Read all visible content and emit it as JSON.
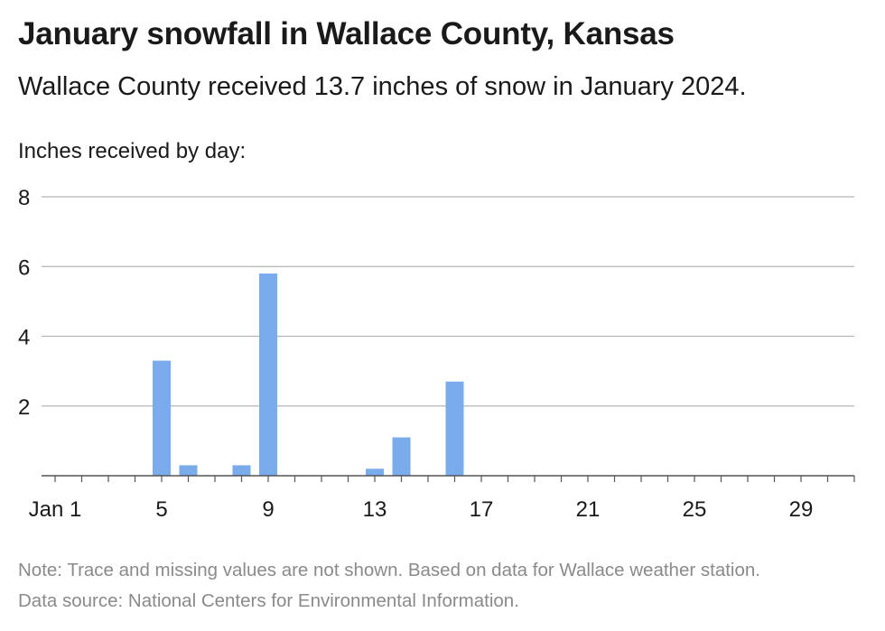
{
  "header": {
    "title": "January snowfall in Wallace County, Kansas",
    "subtitle": "Wallace County received 13.7 inches of snow in January 2024."
  },
  "footer": {
    "note": "Note: Trace and missing values are not shown. Based on data for Wallace weather station.",
    "source": "Data source: National Centers for Environmental Information."
  },
  "chart_data": {
    "type": "bar",
    "title": "January snowfall in Wallace County, Kansas",
    "subtitle": "Wallace County received 13.7 inches of snow in January 2024.",
    "ylabel": "Inches received by day:",
    "xlabel": "",
    "ylim": [
      0,
      8
    ],
    "yticks": [
      2,
      4,
      6,
      8
    ],
    "xlim": [
      1,
      31
    ],
    "xticks": [
      {
        "day": 1,
        "label": "Jan 1"
      },
      {
        "day": 5,
        "label": "5"
      },
      {
        "day": 9,
        "label": "9"
      },
      {
        "day": 13,
        "label": "13"
      },
      {
        "day": 17,
        "label": "17"
      },
      {
        "day": 21,
        "label": "21"
      },
      {
        "day": 25,
        "label": "25"
      },
      {
        "day": 29,
        "label": "29"
      }
    ],
    "grid": true,
    "bar_color": "#7aabeb",
    "days": [
      5,
      6,
      8,
      9,
      13,
      14,
      16
    ],
    "values": [
      3.3,
      0.3,
      0.3,
      5.8,
      0.2,
      1.1,
      2.7
    ]
  }
}
